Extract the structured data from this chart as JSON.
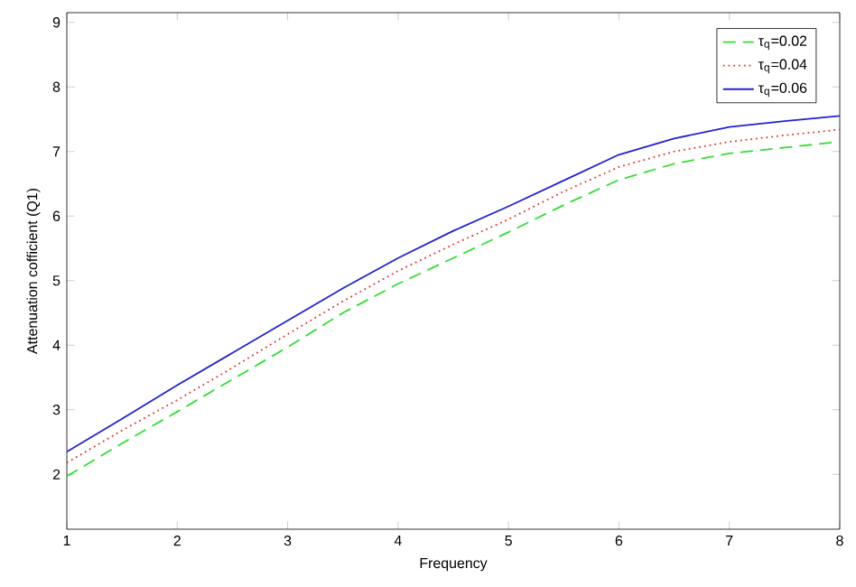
{
  "chart_data": {
    "type": "line",
    "xlabel": "Frequency",
    "ylabel": "Attenuation cofficient (Q1)",
    "xlim": [
      1,
      8
    ],
    "ylim": [
      1.15,
      9.15
    ],
    "xticks": [
      1,
      2,
      3,
      4,
      5,
      6,
      7,
      8
    ],
    "yticks": [
      2,
      3,
      4,
      5,
      6,
      7,
      8,
      9
    ],
    "x": [
      1,
      1.5,
      2,
      2.5,
      3,
      3.5,
      4,
      4.5,
      5,
      5.5,
      6,
      6.5,
      7,
      7.5,
      8
    ],
    "legend": "top right",
    "grid": false,
    "marker": "none",
    "series": [
      {
        "name": "τ$_{q}$=0.02",
        "color": "#33dd33",
        "line_style": "dashed",
        "values": [
          1.97,
          2.48,
          2.97,
          3.47,
          3.97,
          4.5,
          4.95,
          5.35,
          5.75,
          6.17,
          6.56,
          6.81,
          6.97,
          7.06,
          7.15
        ]
      },
      {
        "name": "τ$_{q}$=0.04",
        "color": "#dd3333",
        "line_style": "dotted",
        "values": [
          2.18,
          2.68,
          3.15,
          3.65,
          4.17,
          4.68,
          5.15,
          5.56,
          5.95,
          6.38,
          6.76,
          7.0,
          7.15,
          7.25,
          7.34
        ]
      },
      {
        "name": "τ$_{q}$=0.06",
        "color": "#2222cc",
        "line_style": "solid",
        "values": [
          2.35,
          2.86,
          3.38,
          3.88,
          4.38,
          4.88,
          5.35,
          5.77,
          6.15,
          6.55,
          6.95,
          7.2,
          7.38,
          7.47,
          7.55
        ]
      }
    ]
  }
}
